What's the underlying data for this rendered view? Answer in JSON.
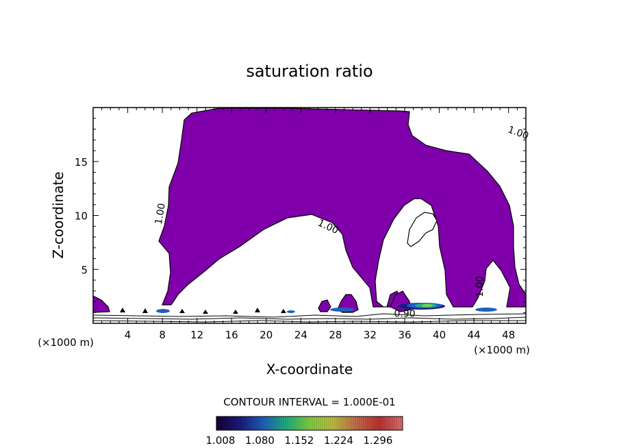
{
  "chart_data": {
    "type": "heatmap",
    "title": "saturation ratio",
    "xlabel": "X-coordinate",
    "ylabel": "Z-coordinate",
    "x_unit": "(×1000 m)",
    "xlim": [
      0,
      50
    ],
    "ylim": [
      0,
      20
    ],
    "x_ticks": [
      4,
      8,
      12,
      16,
      20,
      24,
      28,
      32,
      36,
      40,
      44,
      48
    ],
    "y_ticks": [
      5,
      10,
      15
    ],
    "contour_interval_label": "CONTOUR INTERVAL = 1.000E-01",
    "contour_labels": [
      {
        "text": "1.00",
        "x": 49.0,
        "y": 17.4
      },
      {
        "text": "1.00",
        "x": 8.1,
        "y": 10.1
      },
      {
        "text": "1.00",
        "x": 27.0,
        "y": 8.7
      },
      {
        "text": "1.00",
        "x": 45.0,
        "y": 3.4
      },
      {
        "text": "0.90",
        "x": 36.0,
        "y": 0.6
      }
    ],
    "colorbar": {
      "tick_labels": [
        "1.008",
        "1.080",
        "1.152",
        "1.224",
        "1.296"
      ],
      "colors": [
        "#1a0033",
        "#1a1a80",
        "#1f5fbf",
        "#20b080",
        "#7fd040",
        "#c0c040",
        "#c07050",
        "#c03030",
        "#e07070"
      ]
    },
    "fill_color": "#7f00aa"
  }
}
